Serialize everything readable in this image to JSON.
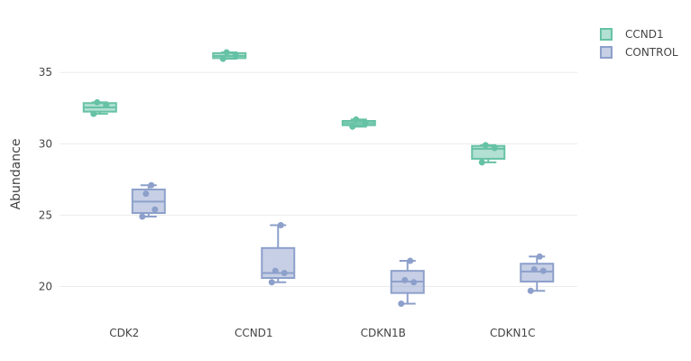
{
  "chart_data": {
    "type": "box",
    "title": "",
    "xlabel": "",
    "ylabel": "Abundance",
    "categories": [
      "CDK2",
      "CCND1",
      "CDKN1B",
      "CDKN1C"
    ],
    "ylim": [
      18.2,
      38.3
    ],
    "yticks": [
      20,
      25,
      30,
      35
    ],
    "grid": true,
    "legend_position": "top-right",
    "series": [
      {
        "name": "CCND1",
        "color": "#66c2a5",
        "boxes": [
          {
            "category": "CDK2",
            "min": 32.1,
            "q1": 32.25,
            "median": 32.55,
            "q3": 32.85,
            "max": 32.9,
            "points": [
              32.1,
              32.7,
              32.9
            ]
          },
          {
            "category": "CCND1",
            "min": 35.95,
            "q1": 36.0,
            "median": 36.15,
            "q3": 36.35,
            "max": 36.4,
            "points": [
              35.95,
              36.2,
              36.4
            ]
          },
          {
            "category": "CDKN1B",
            "min": 31.2,
            "q1": 31.3,
            "median": 31.45,
            "q3": 31.6,
            "max": 31.7,
            "points": [
              31.2,
              31.45,
              31.7
            ]
          },
          {
            "category": "CDKN1C",
            "min": 28.7,
            "q1": 28.95,
            "median": 29.65,
            "q3": 29.85,
            "max": 29.9,
            "points": [
              28.7,
              29.7,
              29.9
            ]
          }
        ]
      },
      {
        "name": "CONTROL",
        "color": "#8da0cb",
        "boxes": [
          {
            "category": "CDK2",
            "min": 24.9,
            "q1": 25.15,
            "median": 25.95,
            "q3": 26.8,
            "max": 27.1,
            "points": [
              24.9,
              25.4,
              26.5,
              27.1
            ]
          },
          {
            "category": "CCND1",
            "min": 20.3,
            "q1": 20.6,
            "median": 20.95,
            "q3": 22.7,
            "max": 24.3,
            "points": [
              20.3,
              20.95,
              21.1,
              24.3
            ]
          },
          {
            "category": "CDKN1B",
            "min": 18.8,
            "q1": 19.55,
            "median": 20.35,
            "q3": 21.1,
            "max": 21.8,
            "points": [
              18.8,
              20.3,
              20.45,
              21.8
            ]
          },
          {
            "category": "CDKN1C",
            "min": 19.7,
            "q1": 20.35,
            "median": 21.05,
            "q3": 21.6,
            "max": 22.1,
            "points": [
              19.7,
              21.1,
              21.2,
              22.1
            ]
          }
        ]
      }
    ]
  }
}
